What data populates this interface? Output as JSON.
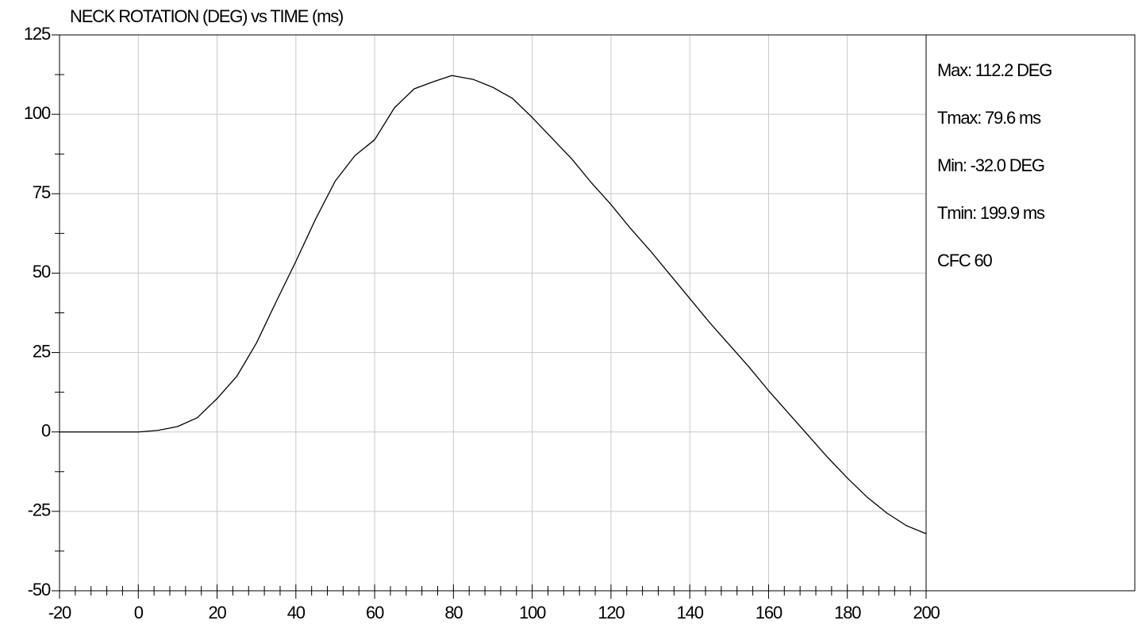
{
  "chart_data": {
    "type": "line",
    "title": "NECK ROTATION (DEG) vs TIME (ms)",
    "x": [
      -20,
      -10,
      0,
      5,
      10,
      15,
      20,
      25,
      30,
      35,
      40,
      45,
      50,
      55,
      60,
      65,
      70,
      75,
      79.6,
      85,
      90,
      95,
      100,
      110,
      115,
      120,
      125,
      130,
      135,
      140,
      145,
      150,
      155,
      160,
      165,
      170,
      175,
      180,
      185,
      190,
      195,
      199.9
    ],
    "series": [
      {
        "color": "#000000",
        "values": [
          0,
          0,
          0,
          0.5,
          1.7,
          4.5,
          10.5,
          17.5,
          28,
          41,
          53.7,
          67,
          79,
          87,
          92,
          102,
          108,
          110.3,
          112.2,
          111,
          108.5,
          105,
          99,
          86,
          78.5,
          71.6,
          64,
          57,
          49.5,
          42,
          34.5,
          27.5,
          20.5,
          13,
          6,
          -1,
          -8,
          -14.5,
          -20.5,
          -25.5,
          -29.5,
          -32
        ]
      }
    ],
    "xlim": [
      -20,
      200
    ],
    "xticks": [
      -20,
      0,
      20,
      40,
      60,
      80,
      100,
      120,
      140,
      160,
      180,
      200
    ],
    "ylim": [
      -50,
      125
    ],
    "yticks": [
      -50,
      -25,
      0,
      25,
      50,
      75,
      100,
      125
    ],
    "grid": true,
    "annotations": [
      "Max: 112.2 DEG",
      "Tmax: 79.6 ms",
      "Min: -32.0 DEG",
      "Tmin: 199.9 ms",
      "CFC 60"
    ]
  }
}
